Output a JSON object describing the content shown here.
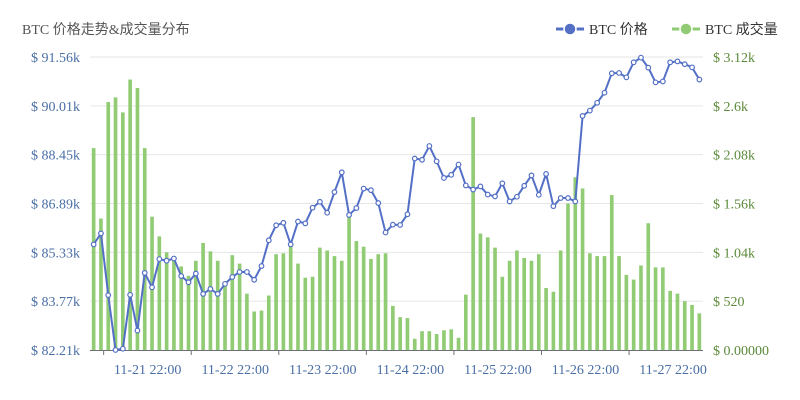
{
  "chart_data": {
    "type": "bar+line",
    "title": "BTC 价格走势&成交量分布",
    "legend": {
      "position": "top-right",
      "items": [
        {
          "name": "BTC 价格",
          "color": "#5470c6"
        },
        {
          "name": "BTC 成交量",
          "color": "#91cc75"
        }
      ]
    },
    "x_tick_labels": [
      "11-21 22:00",
      "11-22 22:00",
      "11-23 22:00",
      "11-24 22:00",
      "11-25 22:00",
      "11-26 22:00",
      "11-27 22:00"
    ],
    "y_left": {
      "min": 82210,
      "max": 91560,
      "tick_labels": [
        "$ 82.21k",
        "$ 83.77k",
        "$ 85.33k",
        "$ 86.89k",
        "$ 88.45k",
        "$ 90.01k",
        "$ 91.56k"
      ]
    },
    "y_right": {
      "min": 0,
      "max": 3120,
      "tick_labels": [
        "$ 0.00000",
        "$ 520",
        "$ 1.04k",
        "$ 1.56k",
        "$ 2.08k",
        "$ 2.6k",
        "$ 3.12k"
      ]
    },
    "grid": true,
    "series": [
      {
        "name": "BTC 价格",
        "type": "line",
        "color": "#5470c6",
        "values": [
          85580,
          85930,
          83960,
          82210,
          82250,
          83970,
          82830,
          84670,
          84210,
          85110,
          85060,
          85130,
          84570,
          84370,
          84650,
          84000,
          84160,
          84000,
          84320,
          84540,
          84700,
          84700,
          84450,
          84890,
          85710,
          86190,
          86270,
          85580,
          86310,
          86250,
          86750,
          86940,
          86590,
          87250,
          87880,
          86520,
          86740,
          87360,
          87310,
          86900,
          85960,
          86210,
          86200,
          86540,
          88320,
          88280,
          88720,
          88230,
          87700,
          87800,
          88130,
          87460,
          87330,
          87430,
          87170,
          87110,
          87530,
          86950,
          87100,
          87450,
          87780,
          87160,
          87830,
          86800,
          87060,
          87060,
          86950,
          89680,
          89850,
          90100,
          90420,
          91040,
          91050,
          90910,
          91390,
          91540,
          91220,
          90750,
          90780,
          91390,
          91420,
          91330,
          91230,
          90840
        ]
      },
      {
        "name": "BTC 成交量",
        "type": "bar",
        "color": "#91cc75",
        "values": [
          2150,
          1400,
          2640,
          2690,
          2530,
          2880,
          2790,
          2150,
          1420,
          1210,
          1040,
          1000,
          890,
          790,
          950,
          1140,
          1050,
          950,
          700,
          1010,
          920,
          600,
          410,
          420,
          580,
          1020,
          1030,
          1100,
          920,
          770,
          780,
          1090,
          1060,
          1000,
          950,
          1440,
          1160,
          1100,
          970,
          1020,
          1030,
          470,
          350,
          340,
          120,
          200,
          200,
          170,
          210,
          220,
          130,
          590,
          2480,
          1240,
          1200,
          1090,
          780,
          950,
          1060,
          980,
          950,
          1020,
          660,
          620,
          1060,
          1560,
          1840,
          1720,
          1030,
          1000,
          1000,
          1650,
          1000,
          800,
          750,
          900,
          1350,
          880,
          880,
          630,
          600,
          520,
          480,
          390
        ]
      }
    ]
  }
}
